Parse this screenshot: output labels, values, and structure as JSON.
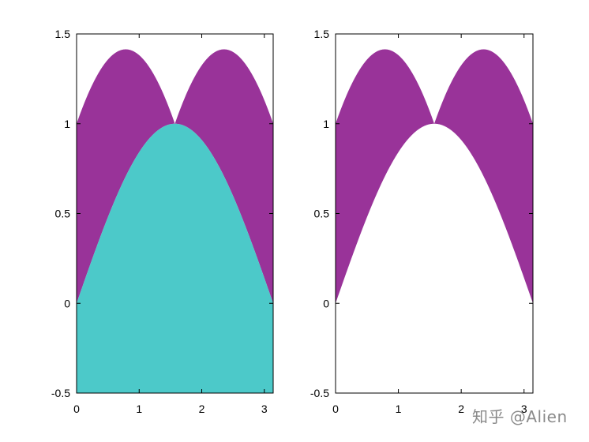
{
  "chart_data": [
    {
      "type": "area",
      "panel": "left",
      "xlim": [
        0,
        3.1416
      ],
      "ylim": [
        -0.5,
        1.5
      ],
      "xticks": [
        "0",
        "1",
        "2",
        "3"
      ],
      "yticks": [
        "-0.5",
        "0",
        "0.5",
        "1",
        "1.5"
      ],
      "series": [
        {
          "fill_between": [
            "sin(x)",
            "abs(sin(x)) + abs(cos(x))"
          ],
          "color": "#993399"
        },
        {
          "fill_between": [
            "-0.5",
            "sin(x)"
          ],
          "color": "#4cc9c9"
        }
      ],
      "x_range": [
        0,
        3.1416
      ],
      "grid": false
    },
    {
      "type": "area",
      "panel": "right",
      "xlim": [
        0,
        3.1416
      ],
      "ylim": [
        -0.5,
        1.5
      ],
      "xticks": [
        "0",
        "1",
        "2",
        "3"
      ],
      "yticks": [
        "-0.5",
        "0",
        "0.5",
        "1",
        "1.5"
      ],
      "series": [
        {
          "fill_between": [
            "sin(x)",
            "abs(sin(x)) + abs(cos(x))"
          ],
          "color": "#993399"
        }
      ],
      "x_range": [
        0,
        3.1416
      ],
      "grid": false
    }
  ],
  "watermark": "知乎 @Alien"
}
